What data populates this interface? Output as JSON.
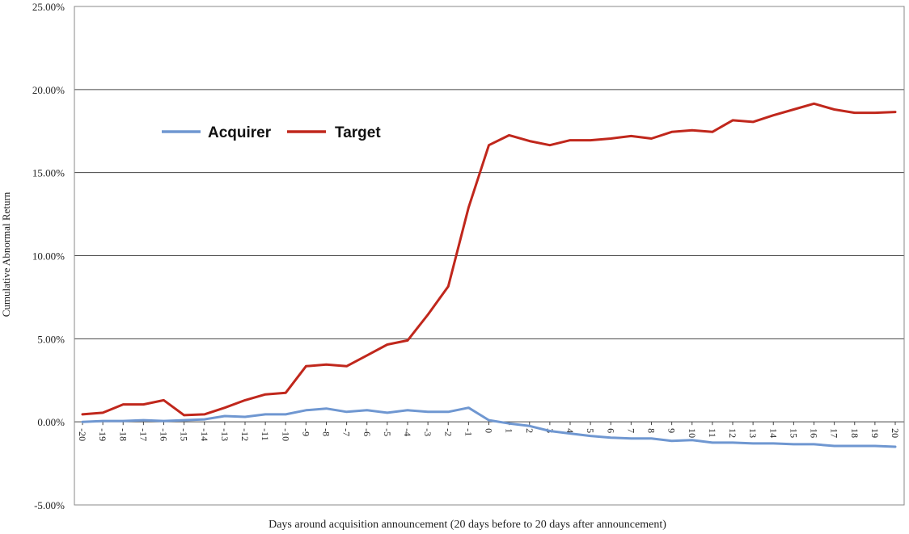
{
  "chart_data": {
    "type": "line",
    "title": "",
    "xlabel": "Days around acquisition announcement (20 days before to 20 days after announcement)",
    "ylabel": "Cumulative Abnormal Return",
    "ylim": [
      -5,
      25
    ],
    "yticks": [
      "-5.00%",
      "0.00%",
      "5.00%",
      "10.00%",
      "15.00%",
      "20.00%",
      "25.00%"
    ],
    "ytick_values": [
      -5,
      0,
      5,
      10,
      15,
      20,
      25
    ],
    "grid": "horizontal",
    "legend_position": "upper-left",
    "x": [
      "-20",
      "-19",
      "-18",
      "-17",
      "-16",
      "-15",
      "-14",
      "-13",
      "-12",
      "-11",
      "-10",
      "-9",
      "-8",
      "-7",
      "-6",
      "-5",
      "-4",
      "-3",
      "-2",
      "-1",
      "0",
      "1",
      "2",
      "3",
      "4",
      "5",
      "6",
      "7",
      "8",
      "9",
      "10",
      "11",
      "12",
      "13",
      "14",
      "15",
      "16",
      "17",
      "18",
      "19",
      "20"
    ],
    "series": [
      {
        "name": "Acquirer",
        "color": "#6f97d1",
        "values": [
          0.0,
          0.05,
          0.05,
          0.1,
          0.05,
          0.1,
          0.15,
          0.35,
          0.3,
          0.45,
          0.45,
          0.7,
          0.8,
          0.6,
          0.7,
          0.55,
          0.7,
          0.6,
          0.6,
          0.85,
          0.1,
          -0.1,
          -0.25,
          -0.55,
          -0.7,
          -0.85,
          -0.95,
          -1.0,
          -1.0,
          -1.15,
          -1.1,
          -1.25,
          -1.25,
          -1.3,
          -1.3,
          -1.35,
          -1.35,
          -1.45,
          -1.45,
          -1.45,
          -1.5
        ]
      },
      {
        "name": "Target",
        "color": "#c0271c",
        "values": [
          0.45,
          0.55,
          1.05,
          1.05,
          1.3,
          0.4,
          0.45,
          0.85,
          1.3,
          1.65,
          1.75,
          3.35,
          3.45,
          3.35,
          4.0,
          4.65,
          4.9,
          6.45,
          8.15,
          12.9,
          16.65,
          17.25,
          16.9,
          16.65,
          16.95,
          16.95,
          17.05,
          17.2,
          17.05,
          17.45,
          17.55,
          17.45,
          18.15,
          18.05,
          18.45,
          18.8,
          19.15,
          18.8,
          18.6,
          18.6,
          18.65
        ]
      }
    ]
  }
}
